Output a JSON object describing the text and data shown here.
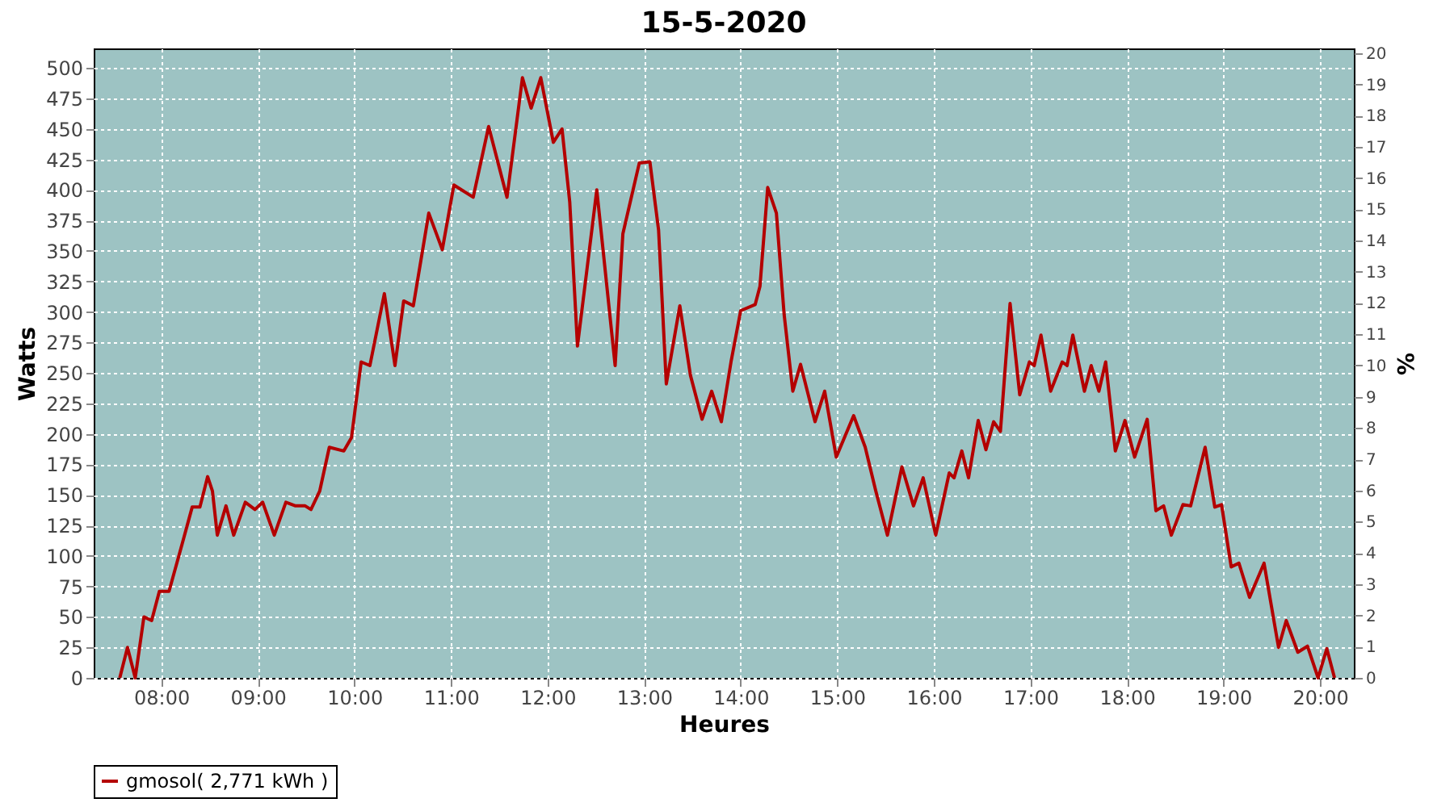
{
  "chart_data": {
    "type": "line",
    "title": "15-5-2020",
    "xlabel": "Heures",
    "ylabel": "Watts",
    "y2label": "%",
    "x": [
      7.57,
      7.65,
      7.73,
      7.82,
      7.9,
      7.98,
      8.08,
      8.22,
      8.32,
      8.4,
      8.48,
      8.53,
      8.58,
      8.67,
      8.75,
      8.87,
      8.97,
      9.05,
      9.17,
      9.29,
      9.39,
      9.49,
      9.55,
      9.64,
      9.74,
      9.89,
      9.97,
      10.07,
      10.16,
      10.31,
      10.42,
      10.51,
      10.61,
      10.77,
      10.91,
      11.03,
      11.23,
      11.39,
      11.58,
      11.74,
      11.83,
      11.93,
      12.06,
      12.15,
      12.23,
      12.31,
      12.51,
      12.58,
      12.7,
      12.78,
      12.95,
      13.06,
      13.15,
      13.23,
      13.37,
      13.48,
      13.6,
      13.7,
      13.8,
      13.9,
      14.0,
      14.15,
      14.2,
      14.28,
      14.37,
      14.45,
      14.54,
      14.62,
      14.7,
      14.77,
      14.87,
      14.99,
      15.17,
      15.29,
      15.4,
      15.52,
      15.67,
      15.79,
      15.89,
      16.02,
      16.16,
      16.21,
      16.29,
      16.36,
      16.46,
      16.54,
      16.62,
      16.69,
      16.79,
      16.89,
      16.99,
      17.04,
      17.11,
      17.21,
      17.33,
      17.38,
      17.44,
      17.56,
      17.63,
      17.71,
      17.78,
      17.88,
      17.98,
      18.08,
      18.21,
      18.3,
      18.38,
      18.46,
      18.58,
      18.66,
      18.81,
      18.91,
      18.98,
      19.08,
      19.16,
      19.27,
      19.42,
      19.57,
      19.65,
      19.77,
      19.87,
      19.98,
      20.07,
      20.15
    ],
    "series": [
      {
        "name": "gmosol( 2,771 kWh )",
        "color": "#b40000",
        "values": [
          0,
          25,
          0,
          50,
          47,
          71,
          71,
          111,
          140,
          140,
          165,
          153,
          117,
          141,
          117,
          144,
          138,
          144,
          117,
          144,
          141,
          141,
          138,
          153,
          189,
          186,
          197,
          259,
          256,
          315,
          256,
          309,
          305,
          381,
          351,
          404,
          394,
          452,
          394,
          492,
          467,
          492,
          439,
          450,
          390,
          272,
          400,
          347,
          256,
          364,
          422,
          423,
          367,
          241,
          305,
          248,
          212,
          235,
          210,
          259,
          301,
          306,
          321,
          402,
          381,
          298,
          235,
          257,
          232,
          210,
          235,
          181,
          215,
          189,
          153,
          117,
          173,
          141,
          164,
          117,
          168,
          164,
          186,
          164,
          211,
          187,
          210,
          202,
          307,
          232,
          259,
          256,
          281,
          235,
          259,
          256,
          281,
          235,
          256,
          235,
          259,
          186,
          211,
          181,
          212,
          137,
          141,
          117,
          142,
          141,
          189,
          140,
          142,
          91,
          94,
          66,
          94,
          25,
          47,
          21,
          26,
          0,
          24,
          0
        ]
      }
    ],
    "xlim": [
      7.3,
      20.35
    ],
    "xticks": [
      {
        "value": 8,
        "label": "08:00"
      },
      {
        "value": 9,
        "label": "09:00"
      },
      {
        "value": 10,
        "label": "10:00"
      },
      {
        "value": 11,
        "label": "11:00"
      },
      {
        "value": 12,
        "label": "12:00"
      },
      {
        "value": 13,
        "label": "13:00"
      },
      {
        "value": 14,
        "label": "14:00"
      },
      {
        "value": 15,
        "label": "15:00"
      },
      {
        "value": 16,
        "label": "16:00"
      },
      {
        "value": 17,
        "label": "17:00"
      },
      {
        "value": 18,
        "label": "18:00"
      },
      {
        "value": 19,
        "label": "19:00"
      },
      {
        "value": 20,
        "label": "20:00"
      }
    ],
    "ylim": [
      0,
      516
    ],
    "yticks": [
      0,
      25,
      50,
      75,
      100,
      125,
      150,
      175,
      200,
      225,
      250,
      275,
      300,
      325,
      350,
      375,
      400,
      425,
      450,
      475,
      500
    ],
    "y2lim": [
      0,
      20.15
    ],
    "y2ticks": [
      0,
      1,
      2,
      3,
      4,
      5,
      6,
      7,
      8,
      9,
      10,
      11,
      12,
      13,
      14,
      15,
      16,
      17,
      18,
      19,
      20
    ],
    "grid": true,
    "legend": "bottom",
    "line_style": "solid"
  }
}
